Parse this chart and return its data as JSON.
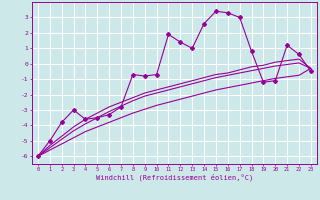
{
  "xlabel": "Windchill (Refroidissement éolien,°C)",
  "bg_color": "#cce8e8",
  "grid_color": "#ffffff",
  "line_color": "#990099",
  "x_data": [
    0,
    1,
    2,
    3,
    4,
    5,
    6,
    7,
    8,
    9,
    10,
    11,
    12,
    13,
    14,
    15,
    16,
    17,
    18,
    19,
    20,
    21,
    22,
    23
  ],
  "y_main": [
    -6.0,
    -5.0,
    -3.8,
    -3.0,
    -3.6,
    -3.5,
    -3.3,
    -2.8,
    -0.7,
    -0.8,
    -0.7,
    1.9,
    1.4,
    1.0,
    2.6,
    3.4,
    3.3,
    3.0,
    0.8,
    -1.2,
    -1.1,
    1.2,
    0.6,
    -0.5
  ],
  "y_line1": [
    -6.0,
    -5.3,
    -4.7,
    -4.1,
    -3.6,
    -3.2,
    -2.8,
    -2.5,
    -2.2,
    -1.9,
    -1.7,
    -1.5,
    -1.3,
    -1.1,
    -0.9,
    -0.7,
    -0.6,
    -0.4,
    -0.2,
    -0.1,
    0.1,
    0.2,
    0.3,
    -0.3
  ],
  "y_line2": [
    -6.0,
    -5.45,
    -4.9,
    -4.35,
    -3.9,
    -3.5,
    -3.1,
    -2.75,
    -2.4,
    -2.1,
    -1.9,
    -1.7,
    -1.5,
    -1.3,
    -1.1,
    -0.9,
    -0.75,
    -0.6,
    -0.45,
    -0.3,
    -0.15,
    -0.05,
    0.05,
    -0.3
  ],
  "y_line3": [
    -6.0,
    -5.6,
    -5.2,
    -4.8,
    -4.4,
    -4.1,
    -3.8,
    -3.5,
    -3.2,
    -2.95,
    -2.7,
    -2.5,
    -2.3,
    -2.1,
    -1.9,
    -1.7,
    -1.55,
    -1.4,
    -1.25,
    -1.1,
    -0.95,
    -0.85,
    -0.75,
    -0.3
  ],
  "xlim": [
    -0.5,
    23.5
  ],
  "ylim": [
    -6.5,
    4.0
  ],
  "yticks": [
    -6,
    -5,
    -4,
    -3,
    -2,
    -1,
    0,
    1,
    2,
    3
  ],
  "xticks": [
    0,
    1,
    2,
    3,
    4,
    5,
    6,
    7,
    8,
    9,
    10,
    11,
    12,
    13,
    14,
    15,
    16,
    17,
    18,
    19,
    20,
    21,
    22,
    23
  ]
}
